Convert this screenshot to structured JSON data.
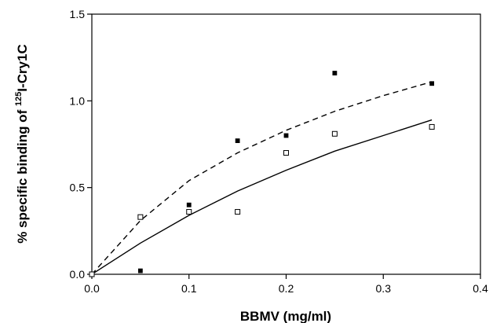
{
  "chart_data": {
    "type": "scatter",
    "title": "",
    "xlabel": "BBMV (mg/ml)",
    "ylabel": {
      "prefix": "% specific binding of ",
      "superscript": "125",
      "suffix": "I-Cry1C"
    },
    "xlim": [
      0.0,
      0.4
    ],
    "ylim": [
      0.0,
      1.5
    ],
    "xticks": [
      "0.0",
      "0.1",
      "0.2",
      "0.3",
      "0.4"
    ],
    "yticks": [
      "0.0",
      "0.5",
      "1.0",
      "1.5"
    ],
    "grid": false,
    "legend": "none",
    "series": [
      {
        "marker": "filled-square",
        "color": "#000000",
        "points": [
          [
            0.0,
            0.0
          ],
          [
            0.05,
            0.02
          ],
          [
            0.1,
            0.4
          ],
          [
            0.15,
            0.77
          ],
          [
            0.2,
            0.8
          ],
          [
            0.25,
            1.16
          ],
          [
            0.35,
            1.1
          ]
        ],
        "fit": {
          "line_style": "dashed",
          "points": [
            [
              0.0,
              0.0
            ],
            [
              0.05,
              0.31
            ],
            [
              0.1,
              0.54
            ],
            [
              0.15,
              0.7
            ],
            [
              0.2,
              0.83
            ],
            [
              0.25,
              0.94
            ],
            [
              0.3,
              1.03
            ],
            [
              0.35,
              1.11
            ]
          ]
        }
      },
      {
        "marker": "open-square",
        "color": "#000000",
        "points": [
          [
            0.0,
            0.0
          ],
          [
            0.05,
            0.33
          ],
          [
            0.1,
            0.36
          ],
          [
            0.15,
            0.36
          ],
          [
            0.2,
            0.7
          ],
          [
            0.25,
            0.81
          ],
          [
            0.35,
            0.85
          ]
        ],
        "fit": {
          "line_style": "solid",
          "points": [
            [
              0.0,
              0.0
            ],
            [
              0.05,
              0.18
            ],
            [
              0.1,
              0.34
            ],
            [
              0.15,
              0.48
            ],
            [
              0.2,
              0.6
            ],
            [
              0.25,
              0.71
            ],
            [
              0.3,
              0.8
            ],
            [
              0.35,
              0.89
            ]
          ]
        }
      }
    ]
  }
}
